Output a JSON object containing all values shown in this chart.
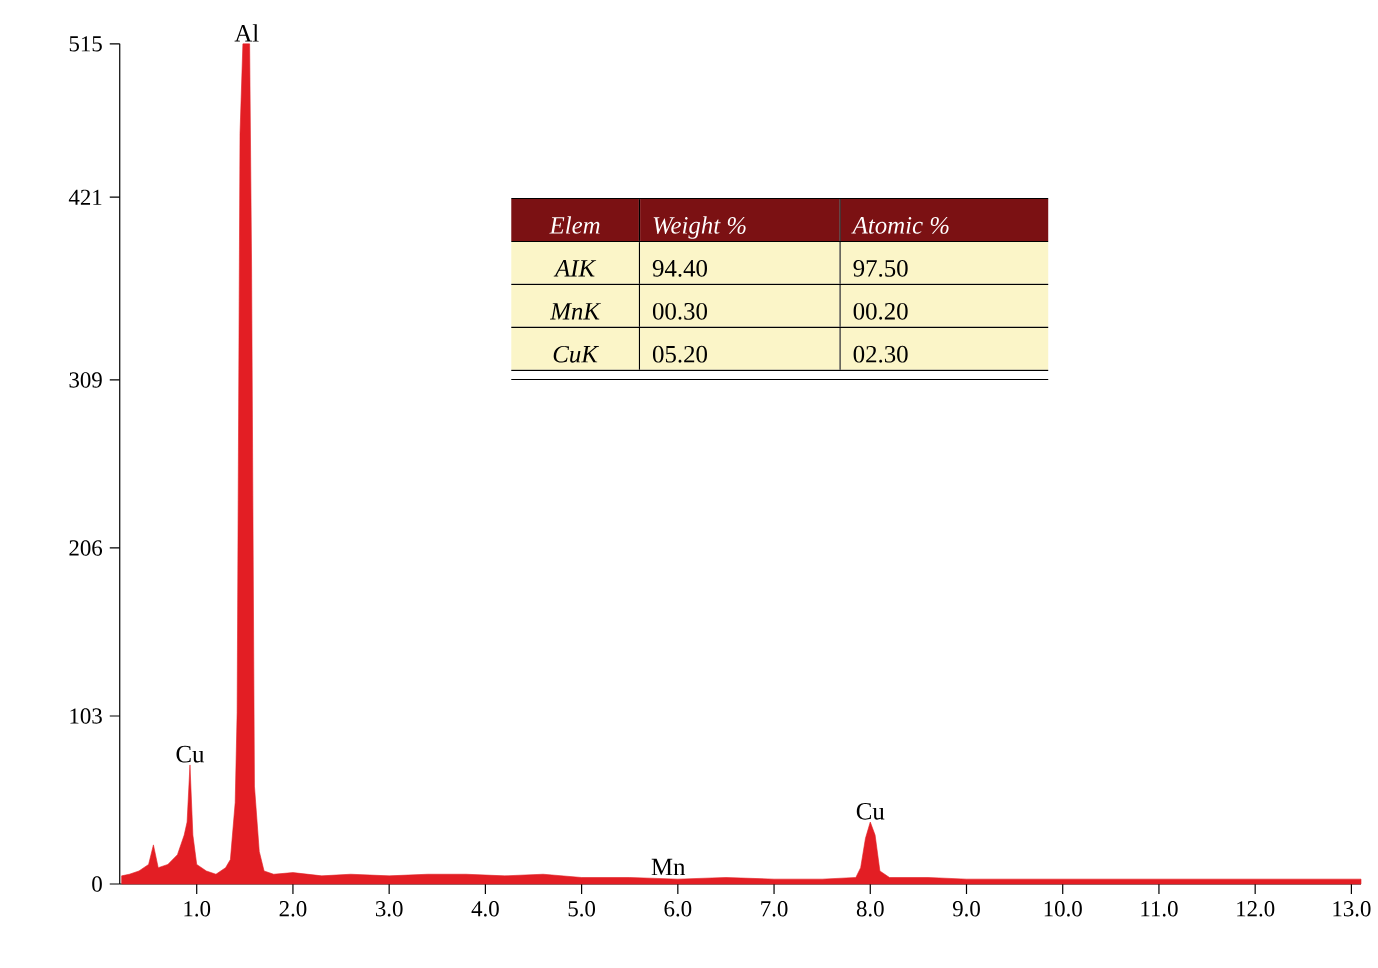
{
  "chart_data": [
    {
      "type": "area",
      "color": "#e31e24",
      "x": [
        0.22,
        0.3,
        0.4,
        0.5,
        0.55,
        0.6,
        0.7,
        0.8,
        0.87,
        0.9,
        0.93,
        0.96,
        1.0,
        1.1,
        1.2,
        1.3,
        1.35,
        1.4,
        1.42,
        1.45,
        1.48,
        1.55,
        1.57,
        1.6,
        1.65,
        1.7,
        1.8,
        2.0,
        2.3,
        2.6,
        3.0,
        3.4,
        3.8,
        4.2,
        4.6,
        5.0,
        5.5,
        6.0,
        6.5,
        7.0,
        7.5,
        7.85,
        7.9,
        7.95,
        8.0,
        8.05,
        8.1,
        8.2,
        8.6,
        9.0,
        9.5,
        10.0,
        10.5,
        11.0,
        11.5,
        12.0,
        12.5,
        13.0,
        13.1
      ],
      "values": [
        5,
        6,
        8,
        12,
        24,
        10,
        12,
        18,
        30,
        38,
        73,
        30,
        12,
        8,
        6,
        10,
        15,
        50,
        105,
        460,
        515,
        515,
        380,
        60,
        20,
        8,
        6,
        7,
        5,
        6,
        5,
        6,
        6,
        5,
        6,
        4,
        4,
        3,
        4,
        3,
        3,
        4,
        10,
        28,
        38,
        30,
        8,
        4,
        4,
        3,
        3,
        3,
        3,
        3,
        3,
        3,
        3,
        3,
        3
      ],
      "xlim": [
        0.2,
        13.1
      ],
      "ylim": [
        0,
        515
      ],
      "xticks": [
        {
          "value": 1,
          "label": "1.0"
        },
        {
          "value": 2,
          "label": "2.0"
        },
        {
          "value": 3,
          "label": "3.0"
        },
        {
          "value": 4,
          "label": "4.0"
        },
        {
          "value": 5,
          "label": "5.0"
        },
        {
          "value": 6,
          "label": "6.0"
        },
        {
          "value": 7,
          "label": "7.0"
        },
        {
          "value": 8,
          "label": "8.0"
        },
        {
          "value": 9,
          "label": "9.0"
        },
        {
          "value": 10,
          "label": "10.0"
        },
        {
          "value": 11,
          "label": "11.0"
        },
        {
          "value": 12,
          "label": "12.0"
        },
        {
          "value": 13,
          "label": "13.0"
        }
      ],
      "yticks": [
        0,
        103,
        206,
        309,
        421,
        515
      ],
      "annotations": [
        {
          "text": "Al",
          "x": 1.52,
          "y": 515
        },
        {
          "text": "Cu",
          "x": 0.93,
          "y": 73
        },
        {
          "text": "Mn",
          "x": 5.9,
          "y": 4
        },
        {
          "text": "Cu",
          "x": 8.0,
          "y": 38
        }
      ]
    },
    {
      "type": "other",
      "annotations": [
        "Elem",
        "Weight %",
        "Atomic %",
        "AIK",
        "94.40",
        "97.50",
        "MnK",
        "00.30",
        "00.20",
        "CuK",
        "05.20",
        "02.30"
      ]
    }
  ]
}
